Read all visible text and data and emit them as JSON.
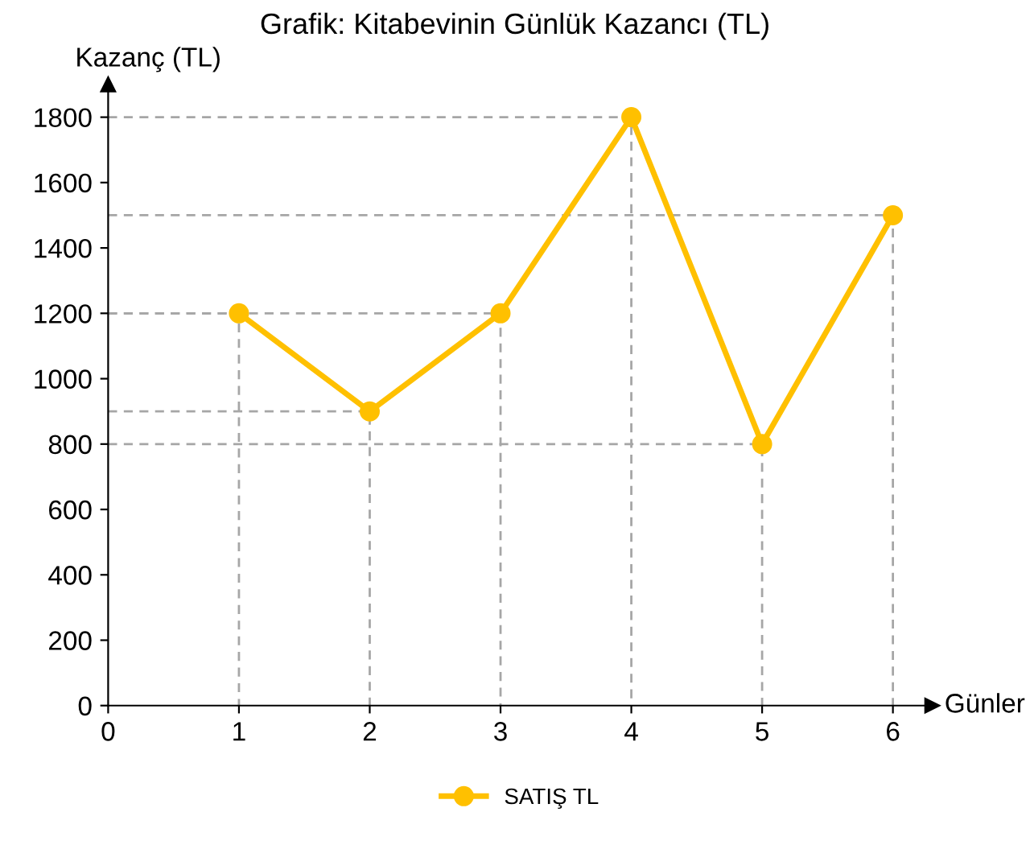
{
  "chart_data": {
    "type": "line",
    "title": "Grafik: Kitabevinin Günlük Kazancı (TL)",
    "xlabel": "Günler",
    "ylabel": "Kazanç (TL)",
    "x": [
      1,
      2,
      3,
      4,
      5,
      6
    ],
    "series": [
      {
        "type": "line",
        "x": [
          0,
          1,
          1
        ],
        "values": [
          1200,
          1200,
          0
        ],
        "color": "#a6a6a6",
        "line_style": "dashed",
        "marker": "none"
      },
      {
        "type": "line",
        "x": [
          0,
          2,
          2
        ],
        "values": [
          900,
          900,
          0
        ],
        "color": "#a6a6a6",
        "line_style": "dashed",
        "marker": "none"
      },
      {
        "type": "line",
        "x": [
          0,
          3,
          3
        ],
        "values": [
          1200,
          1200,
          0
        ],
        "color": "#a6a6a6",
        "line_style": "dashed",
        "marker": "none"
      },
      {
        "type": "line",
        "x": [
          0,
          4,
          4
        ],
        "values": [
          1800,
          1800,
          0
        ],
        "color": "#a6a6a6",
        "line_style": "dashed",
        "marker": "none"
      },
      {
        "type": "line",
        "x": [
          0,
          5,
          5
        ],
        "values": [
          800,
          800,
          0
        ],
        "color": "#a6a6a6",
        "line_style": "dashed",
        "marker": "none"
      },
      {
        "type": "line",
        "x": [
          0,
          6,
          6
        ],
        "values": [
          1500,
          1500,
          0
        ],
        "color": "#a6a6a6",
        "line_style": "dashed",
        "marker": "none"
      },
      {
        "name": "SATIŞ TL",
        "color": "#ffc000",
        "values": [
          1200,
          900,
          1200,
          1800,
          800,
          1500
        ]
      }
    ],
    "xlim": [
      0,
      6.3
    ],
    "xticks": [
      0,
      1,
      2,
      3,
      4,
      5,
      6
    ],
    "ylim": [
      0,
      1900
    ],
    "yticks": [
      0,
      200,
      400,
      600,
      800,
      1000,
      1200,
      1400,
      1600,
      1800
    ],
    "legend": "bottom",
    "marker": "circle",
    "line_style": "solid"
  }
}
